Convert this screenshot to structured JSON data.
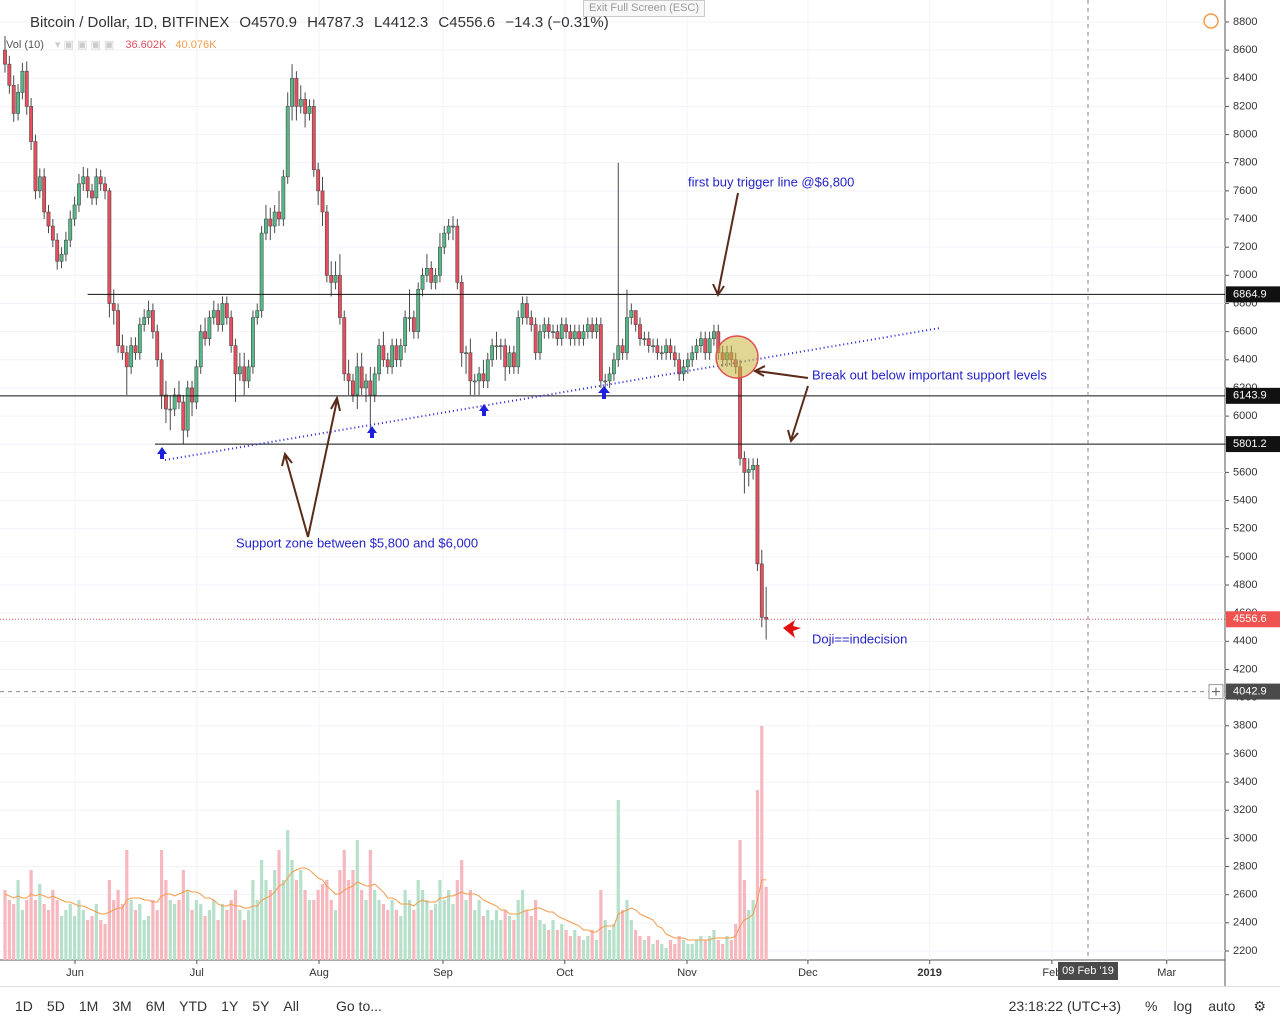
{
  "header": {
    "symbol": "Bitcoin / Dollar, 1D, BITFINEX",
    "open": "O4570.9",
    "high": "H4787.3",
    "low": "L4412.3",
    "close": "C4556.6",
    "change": "−14.3 (−0.31%)",
    "volume_study": "Vol (10)",
    "volume": "36.602K",
    "volume_ma": "40.076K",
    "exit": "Exit Full Screen (ESC)"
  },
  "chart_data": {
    "type": "candlestick",
    "xlim": [
      -1.15,
      280.5
    ],
    "xticks": [
      {
        "value": 16.1,
        "label": "Jun"
      },
      {
        "value": 44.1,
        "label": "Jul"
      },
      {
        "value": 72.2,
        "label": "Aug"
      },
      {
        "value": 100.7,
        "label": "Sep"
      },
      {
        "value": 128.7,
        "label": "Oct"
      },
      {
        "value": 156.8,
        "label": "Nov"
      },
      {
        "value": 184.6,
        "label": "Dec"
      },
      {
        "value": 212.6,
        "label": "2019"
      },
      {
        "value": 240.7,
        "label": "Feb"
      },
      {
        "value": 267.1,
        "label": "Mar"
      }
    ],
    "ylim": [
      2136,
      8956
    ],
    "yticks": [
      2200,
      2400,
      2600,
      2800,
      3000,
      3200,
      3400,
      3600,
      3800,
      4000,
      4200,
      4400,
      4600,
      4800,
      5000,
      5200,
      5400,
      5600,
      5800,
      6000,
      6200,
      6400,
      6600,
      6800,
      7000,
      7200,
      7400,
      7600,
      7800,
      8000,
      8200,
      8400,
      8600,
      8800
    ],
    "grid": true,
    "up_color": "#53b987",
    "down_color": "#eb4d5c",
    "up_volume_color": "#b7e0cb",
    "down_volume_color": "#f6b8be",
    "volume_ma_color": "#f39c4a",
    "open": [
      8600,
      8500,
      8350,
      8150,
      8300,
      8450,
      8200,
      7950,
      7600,
      7700,
      7450,
      7350,
      7250,
      7100,
      7150,
      7250,
      7400,
      7500,
      7650,
      7700,
      7600,
      7550,
      7700,
      7650,
      7600,
      6800,
      6750,
      6500,
      6450,
      6350,
      6500,
      6450,
      6650,
      6700,
      6750,
      6600,
      6400,
      6150,
      6050,
      6050,
      6150,
      6100,
      5900,
      6200,
      6100,
      6350,
      6600,
      6550,
      6700,
      6750,
      6650,
      6800,
      6700,
      6500,
      6300,
      6350,
      6250,
      6350,
      6700,
      6750,
      7300,
      7400,
      7350,
      7450,
      7400,
      7700,
      8200,
      8400,
      8200,
      8250,
      8150,
      8200,
      7750,
      7600,
      7450,
      7000,
      6950,
      7000,
      6700,
      6300,
      6250,
      6150,
      6350,
      6200,
      6250,
      6150,
      6300,
      6500,
      6400,
      6350,
      6500,
      6400,
      6500,
      6700,
      6700,
      6600,
      6900,
      7000,
      7050,
      6950,
      7000,
      7200,
      7300,
      7350,
      7350,
      6950,
      6450,
      6450,
      6250,
      6250,
      6300,
      6250,
      6400,
      6500,
      6500,
      6500,
      6350,
      6450,
      6350,
      6700,
      6800,
      6700,
      6650,
      6450,
      6600,
      6650,
      6600,
      6600,
      6550,
      6650,
      6600,
      6550,
      6600,
      6550,
      6600,
      6650,
      6600,
      6650,
      6250,
      6250,
      6300,
      6400,
      6500,
      6450,
      6700,
      6750,
      6650,
      6550,
      6550,
      6500,
      6500,
      6450,
      6450,
      6500,
      6450,
      6400,
      6300,
      6350,
      6400,
      6450,
      6500,
      6550,
      6450,
      6550,
      6600,
      6450,
      6400,
      6450,
      6400,
      6350,
      5700,
      5600,
      5620,
      5650,
      4950,
      4570.9
    ],
    "high": [
      8700,
      8560,
      8420,
      8360,
      8510,
      8520,
      8260,
      8000,
      7760,
      7760,
      7500,
      7400,
      7300,
      7200,
      7310,
      7460,
      7560,
      7720,
      7770,
      7760,
      7650,
      7760,
      7750,
      7700,
      7620,
      6900,
      6800,
      6580,
      6500,
      6560,
      6560,
      6700,
      6760,
      6820,
      6800,
      6650,
      6450,
      6250,
      6150,
      6200,
      6250,
      6150,
      6250,
      6250,
      6400,
      6650,
      6700,
      6750,
      6820,
      6800,
      6850,
      6850,
      6750,
      6550,
      6450,
      6450,
      6400,
      6750,
      6800,
      7350,
      7500,
      7480,
      7500,
      7600,
      7750,
      8300,
      8500,
      8450,
      8350,
      8300,
      8250,
      8250,
      7800,
      7700,
      7500,
      7100,
      7100,
      7150,
      6750,
      6400,
      6300,
      6450,
      6450,
      6300,
      6350,
      6350,
      6550,
      6600,
      6450,
      6550,
      6550,
      6550,
      6750,
      6900,
      6750,
      6950,
      7050,
      7150,
      7100,
      7050,
      7300,
      7350,
      7400,
      7420,
      7400,
      7000,
      6500,
      6550,
      6300,
      6350,
      6400,
      6450,
      6550,
      6600,
      6550,
      6550,
      6500,
      6500,
      6750,
      6850,
      6850,
      6750,
      6700,
      6650,
      6700,
      6700,
      6650,
      6650,
      6700,
      6700,
      6650,
      6650,
      6650,
      6650,
      6700,
      6700,
      6700,
      6700,
      6300,
      6350,
      6450,
      7800,
      6550,
      6900,
      6800,
      6750,
      6700,
      6600,
      6600,
      6550,
      6550,
      6500,
      6550,
      6550,
      6500,
      6450,
      6400,
      6450,
      6500,
      6550,
      6600,
      6600,
      6600,
      6650,
      6650,
      6500,
      6500,
      6500,
      6450,
      6400,
      5750,
      5700,
      5700,
      5700,
      5050,
      4787.3
    ],
    "low": [
      8440,
      8290,
      8090,
      8100,
      8250,
      8140,
      7890,
      7540,
      7550,
      7400,
      7300,
      7200,
      7040,
      7050,
      7100,
      7200,
      7350,
      7450,
      7600,
      7550,
      7500,
      7500,
      7600,
      7540,
      6700,
      6650,
      6450,
      6400,
      6150,
      6300,
      6400,
      6400,
      6600,
      6650,
      6550,
      6350,
      6050,
      5950,
      5900,
      6000,
      6050,
      5800,
      5850,
      6000,
      6050,
      6300,
      6500,
      6500,
      6650,
      6600,
      6600,
      6650,
      6450,
      6100,
      6250,
      6150,
      6200,
      6300,
      6650,
      6700,
      7250,
      7250,
      7300,
      7350,
      7350,
      7650,
      8100,
      8100,
      8150,
      8050,
      8100,
      7700,
      7500,
      7350,
      6950,
      6850,
      6900,
      6650,
      6250,
      6150,
      6100,
      6050,
      6150,
      6100,
      5900,
      6100,
      6250,
      6350,
      6300,
      6300,
      6350,
      6350,
      6450,
      6600,
      6550,
      6550,
      6850,
      6950,
      6900,
      6900,
      6950,
      7150,
      7250,
      7250,
      6900,
      6350,
      6300,
      6150,
      6150,
      6150,
      6200,
      6200,
      6350,
      6400,
      6400,
      6250,
      6300,
      6300,
      6300,
      6650,
      6650,
      6600,
      6400,
      6400,
      6550,
      6550,
      6550,
      6500,
      6500,
      6550,
      6500,
      6500,
      6500,
      6500,
      6550,
      6550,
      6550,
      6200,
      6150,
      6200,
      6250,
      6350,
      6400,
      6400,
      6650,
      6600,
      6500,
      6500,
      6450,
      6450,
      6400,
      6400,
      6400,
      6400,
      6350,
      6250,
      6250,
      6300,
      6350,
      6400,
      6450,
      6400,
      6400,
      6500,
      6400,
      6350,
      6350,
      6350,
      6300,
      5650,
      5450,
      5500,
      5550,
      4900,
      4500,
      4412.3
    ],
    "close": [
      8500,
      8350,
      8150,
      8300,
      8450,
      8200,
      7950,
      7600,
      7700,
      7450,
      7350,
      7250,
      7100,
      7150,
      7250,
      7400,
      7500,
      7650,
      7700,
      7600,
      7550,
      7700,
      7650,
      7600,
      6800,
      6750,
      6500,
      6450,
      6350,
      6500,
      6450,
      6650,
      6700,
      6750,
      6600,
      6400,
      6150,
      6050,
      6050,
      6150,
      6100,
      5900,
      6200,
      6100,
      6350,
      6600,
      6550,
      6700,
      6750,
      6650,
      6800,
      6700,
      6500,
      6300,
      6350,
      6250,
      6350,
      6700,
      6750,
      7300,
      7400,
      7350,
      7450,
      7400,
      7700,
      8200,
      8400,
      8200,
      8250,
      8150,
      8200,
      7750,
      7600,
      7450,
      7000,
      6950,
      7000,
      6700,
      6300,
      6250,
      6150,
      6350,
      6200,
      6250,
      6150,
      6300,
      6500,
      6400,
      6350,
      6500,
      6400,
      6500,
      6700,
      6700,
      6600,
      6900,
      7000,
      7050,
      6950,
      7000,
      7200,
      7300,
      7350,
      7350,
      6950,
      6450,
      6450,
      6250,
      6250,
      6300,
      6250,
      6400,
      6500,
      6500,
      6500,
      6350,
      6450,
      6350,
      6700,
      6800,
      6700,
      6650,
      6450,
      6600,
      6650,
      6600,
      6600,
      6550,
      6650,
      6600,
      6550,
      6600,
      6550,
      6600,
      6650,
      6600,
      6650,
      6250,
      6250,
      6300,
      6400,
      6500,
      6450,
      6700,
      6750,
      6650,
      6550,
      6550,
      6500,
      6500,
      6450,
      6450,
      6500,
      6450,
      6400,
      6300,
      6350,
      6400,
      6450,
      6500,
      6550,
      6450,
      6550,
      6600,
      6450,
      6400,
      6450,
      6400,
      6350,
      5700,
      5600,
      5620,
      5650,
      4950,
      4570.9,
      4556.6
    ],
    "volume_ylim": [
      0,
      480
    ],
    "volume": [
      35,
      30,
      28,
      40,
      25,
      30,
      45,
      30,
      38,
      28,
      25,
      35,
      30,
      22,
      25,
      28,
      22,
      30,
      25,
      20,
      22,
      28,
      20,
      18,
      40,
      30,
      35,
      28,
      55,
      30,
      25,
      28,
      20,
      22,
      30,
      25,
      55,
      40,
      30,
      28,
      30,
      45,
      35,
      25,
      30,
      28,
      22,
      25,
      30,
      20,
      28,
      25,
      30,
      35,
      25,
      20,
      25,
      40,
      30,
      50,
      40,
      35,
      45,
      55,
      40,
      65,
      50,
      40,
      45,
      35,
      30,
      30,
      35,
      38,
      40,
      30,
      25,
      45,
      55,
      40,
      45,
      60,
      35,
      30,
      55,
      35,
      30,
      28,
      25,
      30,
      25,
      22,
      35,
      30,
      25,
      40,
      35,
      30,
      25,
      28,
      40,
      30,
      35,
      28,
      40,
      50,
      30,
      35,
      25,
      30,
      22,
      25,
      20,
      25,
      20,
      25,
      22,
      20,
      30,
      35,
      25,
      22,
      30,
      20,
      18,
      15,
      20,
      15,
      18,
      15,
      12,
      15,
      12,
      10,
      12,
      15,
      10,
      35,
      20,
      15,
      18,
      80,
      25,
      30,
      20,
      15,
      12,
      10,
      12,
      8,
      10,
      8,
      6,
      10,
      8,
      12,
      10,
      8,
      8,
      10,
      12,
      10,
      12,
      15,
      10,
      8,
      12,
      10,
      18,
      60,
      40,
      25,
      30,
      85,
      117,
      36.602
    ],
    "volume_ma": [
      33,
      32,
      31,
      32,
      31,
      31,
      33,
      32,
      33,
      32,
      31,
      32,
      31,
      30,
      29,
      29,
      28,
      27,
      27,
      26,
      25,
      24,
      23,
      23,
      24,
      25,
      26,
      26,
      30,
      31,
      31,
      31,
      30,
      30,
      29,
      29,
      32,
      33,
      33,
      32,
      33,
      34,
      35,
      34,
      34,
      33,
      31,
      31,
      30,
      28,
      27,
      27,
      28,
      27,
      27,
      26,
      26,
      27,
      27,
      30,
      31,
      32,
      34,
      37,
      38,
      41,
      44,
      45,
      46,
      46,
      45,
      43,
      41,
      40,
      37,
      35,
      33,
      33,
      35,
      36,
      37,
      39,
      38,
      37,
      37,
      38,
      36,
      34,
      31,
      31,
      30,
      28,
      28,
      28,
      27,
      29,
      30,
      29,
      29,
      29,
      31,
      31,
      32,
      32,
      33,
      34,
      33,
      33,
      33,
      32,
      30,
      29,
      28,
      27,
      25,
      25,
      23,
      23,
      23,
      24,
      25,
      25,
      26,
      26,
      25,
      24,
      24,
      22,
      21,
      20,
      19,
      18,
      17,
      15,
      15,
      14,
      14,
      16,
      17,
      17,
      17,
      23,
      24,
      25,
      26,
      25,
      23,
      22,
      21,
      20,
      17,
      16,
      13,
      12,
      11,
      11,
      11,
      10,
      10,
      10,
      10,
      10,
      10,
      11,
      11,
      11,
      11,
      11,
      12,
      17,
      20,
      21,
      23,
      30,
      40,
      40.076
    ],
    "levels": [
      {
        "value": 6864.9,
        "from": 19
      },
      {
        "value": 6143.9,
        "from": -1.15
      },
      {
        "value": 5801.2,
        "from": 34.5
      }
    ],
    "last_price": 4556.6,
    "trendline": {
      "from": [
        36.8,
        5688
      ],
      "to": [
        215,
        6626
      ]
    },
    "crosshair": {
      "x": 249,
      "price": 4042.9,
      "label": "09 Feb '19"
    },
    "annotations": [
      "first buy trigger line @$6,800",
      "Break out below important support levels",
      "Support zone between $5,800 and $6,000",
      "Doji==indecision"
    ]
  },
  "toolbar": {
    "ranges": [
      "1D",
      "5D",
      "1M",
      "3M",
      "6M",
      "YTD",
      "1Y",
      "5Y",
      "All"
    ],
    "goto": "Go to...",
    "time": "23:18:22 (UTC+3)",
    "percent": "%",
    "log": "log",
    "auto": "auto"
  }
}
